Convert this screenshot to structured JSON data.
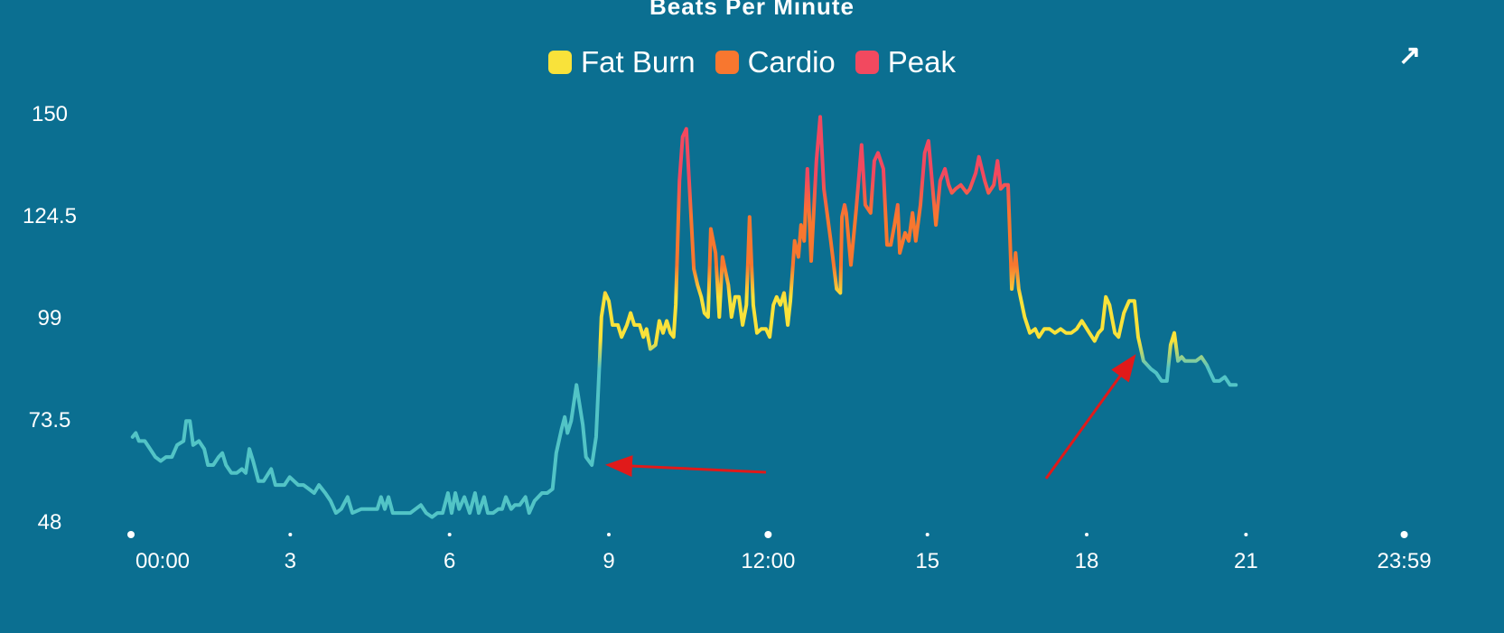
{
  "chart_data": {
    "type": "line",
    "title": "Beats Per Minute",
    "xlabel": "",
    "ylabel": "",
    "ylim": [
      48,
      150
    ],
    "xlim": [
      0,
      24
    ],
    "yticks": [
      150,
      124.5,
      99,
      73.5,
      48
    ],
    "xticks": [
      {
        "h": 0,
        "label": "00:00",
        "major": true
      },
      {
        "h": 3,
        "label": "3",
        "major": false
      },
      {
        "h": 6,
        "label": "6",
        "major": false
      },
      {
        "h": 9,
        "label": "9",
        "major": false
      },
      {
        "h": 12,
        "label": "12:00",
        "major": true
      },
      {
        "h": 15,
        "label": "15",
        "major": false
      },
      {
        "h": 18,
        "label": "18",
        "major": false
      },
      {
        "h": 21,
        "label": "21",
        "major": false
      },
      {
        "h": 23.98,
        "label": "23:59",
        "major": true
      }
    ],
    "legend": [
      {
        "name": "Fat Burn",
        "color": "#f9e23a"
      },
      {
        "name": "Cardio",
        "color": "#f8772f"
      },
      {
        "name": "Peak",
        "color": "#f2495f"
      }
    ],
    "legend_position": "top-center",
    "zone_colors": {
      "below": "#52c4c6",
      "fat_burn": "#f9e23a",
      "cardio": "#f8772f",
      "peak": "#f2495f"
    },
    "annotation_color": "#e01a1a",
    "x": [
      0.03,
      0.09,
      0.15,
      0.26,
      0.36,
      0.46,
      0.56,
      0.66,
      0.77,
      0.87,
      0.99,
      1.04,
      1.11,
      1.17,
      1.28,
      1.38,
      1.45,
      1.55,
      1.65,
      1.72,
      1.79,
      1.89,
      1.99,
      2.09,
      2.16,
      2.23,
      2.3,
      2.4,
      2.5,
      2.64,
      2.72,
      2.89,
      2.99,
      3.15,
      3.25,
      3.35,
      3.45,
      3.54,
      3.66,
      3.76,
      3.86,
      3.96,
      4.08,
      4.17,
      4.34,
      4.51,
      4.64,
      4.71,
      4.78,
      4.85,
      4.93,
      5.05,
      5.15,
      5.26,
      5.36,
      5.46,
      5.56,
      5.67,
      5.77,
      5.87,
      5.97,
      6.04,
      6.11,
      6.18,
      6.28,
      6.38,
      6.48,
      6.55,
      6.65,
      6.72,
      6.82,
      6.92,
      6.99,
      7.06,
      7.16,
      7.23,
      7.32,
      7.43,
      7.5,
      7.6,
      7.74,
      7.84,
      7.94,
      8.01,
      8.11,
      8.17,
      8.22,
      8.29,
      8.39,
      8.51,
      8.57,
      8.68,
      8.76,
      8.83,
      8.86,
      8.93,
      9.0,
      9.07,
      9.17,
      9.24,
      9.34,
      9.41,
      9.48,
      9.58,
      9.65,
      9.71,
      9.78,
      9.88,
      9.95,
      10.02,
      10.09,
      10.16,
      10.22,
      10.26,
      10.33,
      10.39,
      10.46,
      10.53,
      10.6,
      10.67,
      10.74,
      10.8,
      10.87,
      10.92,
      11.01,
      11.08,
      11.14,
      11.25,
      11.31,
      11.38,
      11.45,
      11.52,
      11.59,
      11.65,
      11.72,
      11.79,
      11.87,
      11.96,
      12.03,
      12.1,
      12.16,
      12.23,
      12.3,
      12.37,
      12.42,
      12.5,
      12.57,
      12.62,
      12.68,
      12.74,
      12.81,
      12.91,
      12.98,
      13.05,
      13.12,
      13.18,
      13.29,
      13.36,
      13.39,
      13.44,
      13.47,
      13.56,
      13.66,
      13.76,
      13.83,
      13.93,
      14.0,
      14.07,
      14.17,
      14.24,
      14.31,
      14.38,
      14.44,
      14.48,
      14.58,
      14.65,
      14.72,
      14.78,
      14.87,
      14.95,
      15.02,
      15.16,
      15.24,
      15.33,
      15.4,
      15.46,
      15.53,
      15.63,
      15.74,
      15.8,
      15.91,
      15.97,
      16.08,
      16.15,
      16.25,
      16.32,
      16.38,
      16.45,
      16.52,
      16.59,
      16.66,
      16.72,
      16.83,
      16.93,
      17.03,
      17.1,
      17.2,
      17.3,
      17.4,
      17.51,
      17.61,
      17.71,
      17.81,
      17.91,
      18.05,
      18.15,
      18.22,
      18.29,
      18.36,
      18.43,
      18.53,
      18.6,
      18.7,
      18.8,
      18.9,
      18.97,
      19.07,
      19.21,
      19.31,
      19.41,
      19.51,
      19.58,
      19.65,
      19.72,
      19.79,
      19.85,
      19.96,
      20.06,
      20.16,
      20.26,
      20.4,
      20.5,
      20.6,
      20.7,
      20.81
    ],
    "values": [
      69,
      70,
      68,
      68,
      66,
      64,
      63,
      64,
      64,
      67,
      68,
      73,
      73,
      67,
      68,
      66,
      62,
      62,
      64,
      65,
      62,
      60,
      60,
      61,
      60,
      66,
      63,
      58,
      58,
      61,
      57,
      57,
      59,
      57,
      57,
      56,
      55,
      57,
      55,
      53,
      50,
      51,
      54,
      50,
      51,
      51,
      51,
      54,
      51,
      54,
      50,
      50,
      50,
      50,
      51,
      52,
      50,
      49,
      50,
      50,
      55,
      50,
      55,
      51,
      54,
      50,
      55,
      50,
      54,
      50,
      50,
      51,
      51,
      54,
      51,
      52,
      52,
      54,
      50,
      53,
      55,
      55,
      56,
      65,
      71,
      74,
      70,
      73,
      82,
      72,
      64,
      62,
      69,
      89,
      99,
      105,
      103,
      97,
      97,
      94,
      97,
      100,
      97,
      97,
      94,
      96,
      91,
      92,
      98,
      95,
      98,
      95,
      94,
      102,
      133,
      144,
      146,
      129,
      111,
      107,
      104,
      100,
      99,
      121,
      115,
      99,
      114,
      107,
      99,
      104,
      104,
      97,
      102,
      124,
      102,
      95,
      96,
      96,
      94,
      102,
      104,
      102,
      105,
      97,
      103,
      118,
      114,
      122,
      118,
      136,
      113,
      138,
      149,
      131,
      124,
      118,
      106,
      105,
      124,
      127,
      125,
      112,
      126,
      142,
      127,
      125,
      138,
      140,
      136,
      117,
      117,
      122,
      127,
      115,
      120,
      118,
      125,
      118,
      127,
      140,
      143,
      122,
      133,
      136,
      132,
      130,
      131,
      132,
      130,
      131,
      135,
      139,
      133,
      130,
      132,
      138,
      131,
      132,
      132,
      106,
      115,
      106,
      99,
      95,
      96,
      94,
      96,
      96,
      95,
      96,
      95,
      95,
      96,
      98,
      95,
      93,
      95,
      96,
      104,
      102,
      95,
      94,
      100,
      103,
      103,
      94,
      88,
      86,
      85,
      83,
      83,
      92,
      95,
      88,
      89,
      88,
      88,
      88,
      89,
      87,
      83,
      83,
      84,
      82,
      82
    ]
  },
  "ui": {
    "expand_icon": "expand-arrow-icon",
    "expand_glyph": "↗"
  }
}
